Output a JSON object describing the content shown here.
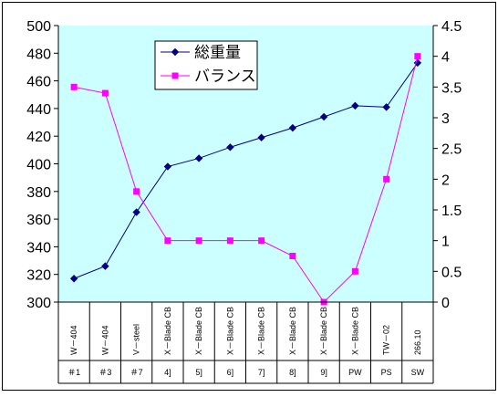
{
  "chart_data": {
    "type": "line",
    "categories": [
      "W－404",
      "W－404",
      "V－steel",
      "X－Blade CB",
      "X－Blade CB",
      "X－Blade CB",
      "X－Blade CB",
      "X－Blade CB",
      "X－Blade CB",
      "X－Blade CB",
      "TW－02",
      "266.10"
    ],
    "groups": [
      "＃1",
      "＃3",
      "＃7",
      "4]",
      "5]",
      "6]",
      "7]",
      "8]",
      "9]",
      "PW",
      "PS",
      "SW"
    ],
    "series": [
      {
        "name": "総重量",
        "axis": "left",
        "color": "#000080",
        "marker": "diamond",
        "values": [
          317,
          326,
          365,
          398,
          404,
          412,
          419,
          426,
          434,
          442,
          441,
          473
        ]
      },
      {
        "name": "バランス",
        "axis": "right",
        "color": "#ff00ff",
        "marker": "square",
        "values": [
          3.5,
          3.4,
          1.8,
          1.0,
          1.0,
          1.0,
          1.0,
          0.75,
          0.0,
          0.5,
          2.0,
          4.0
        ]
      }
    ],
    "y_left": {
      "lim": [
        300,
        500
      ],
      "ticks": [
        "300",
        "320",
        "340",
        "360",
        "380",
        "400",
        "420",
        "440",
        "460",
        "480",
        "500"
      ]
    },
    "y_right": {
      "lim": [
        0,
        4.5
      ],
      "ticks": [
        "0",
        "0.5",
        "1",
        "1.5",
        "2",
        "2.5",
        "3",
        "3.5",
        "4",
        "4.5"
      ]
    },
    "grid": false,
    "legend": "top-center",
    "colors": {
      "plot_background": "#ccffff",
      "axis": "#000000"
    }
  }
}
